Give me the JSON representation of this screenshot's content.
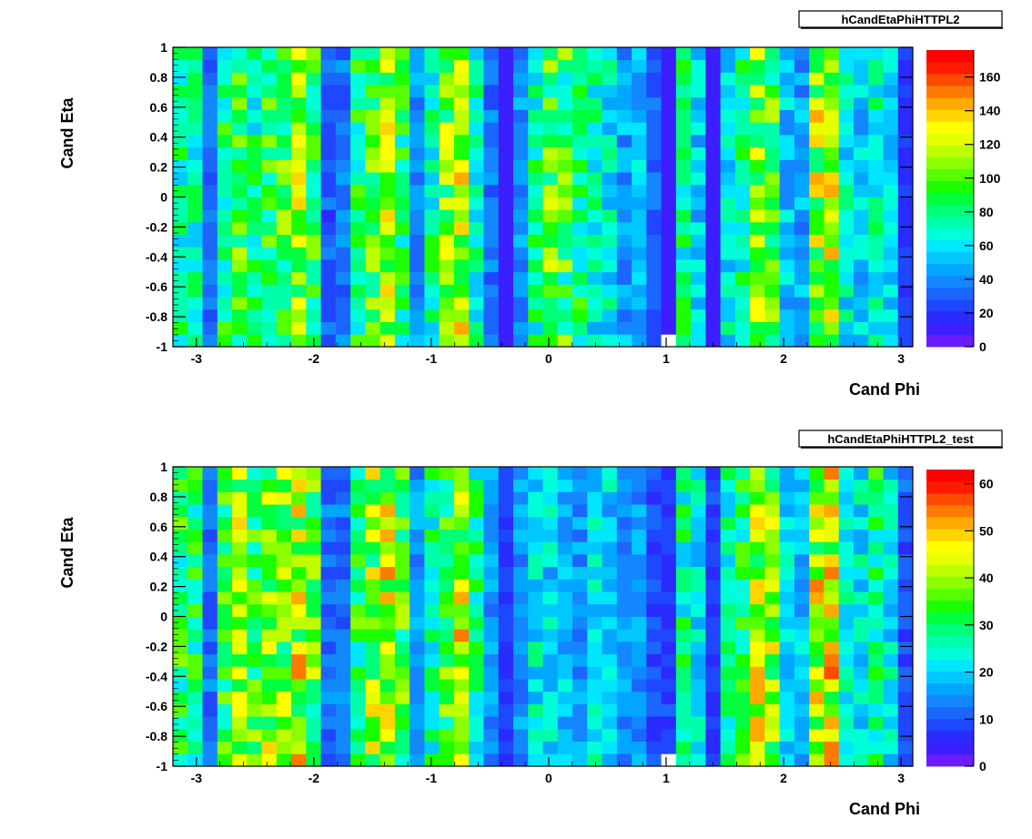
{
  "chart_data": [
    {
      "type": "heatmap",
      "title": "hCandEtaPhiHTTPL2",
      "xlabel": "Cand Phi",
      "ylabel": "Cand Eta",
      "xlim": [
        -3.2,
        3.1
      ],
      "ylim": [
        -1,
        1
      ],
      "x_ticks": [
        -3,
        -2,
        -1,
        0,
        1,
        2,
        3
      ],
      "y_ticks": [
        -1,
        -0.8,
        -0.6,
        -0.4,
        -0.2,
        0,
        0.2,
        0.4,
        0.6,
        0.8,
        1
      ],
      "x_bins": 50,
      "y_bins": 24,
      "zlim": [
        0,
        176
      ],
      "z_ticks": [
        0,
        20,
        40,
        60,
        80,
        100,
        120,
        140,
        160
      ],
      "column_profile": [
        75,
        70,
        30,
        80,
        90,
        75,
        90,
        95,
        110,
        90,
        30,
        35,
        80,
        95,
        110,
        80,
        40,
        75,
        105,
        115,
        70,
        35,
        10,
        40,
        75,
        95,
        90,
        80,
        70,
        65,
        45,
        50,
        30,
        10,
        75,
        55,
        10,
        60,
        75,
        105,
        90,
        50,
        45,
        110,
        120,
        65,
        55,
        70,
        55,
        20
      ],
      "grid": false,
      "legend_position": "right"
    },
    {
      "type": "heatmap",
      "title": "hCandEtaPhiHTTPL2_test",
      "xlabel": "Cand Phi",
      "ylabel": "Cand Eta",
      "xlim": [
        -3.2,
        3.1
      ],
      "ylim": [
        -1,
        1
      ],
      "x_ticks": [
        -3,
        -2,
        -1,
        0,
        1,
        2,
        3
      ],
      "y_ticks": [
        -1,
        -0.8,
        -0.6,
        -0.4,
        -0.2,
        0,
        0.2,
        0.4,
        0.6,
        0.8,
        1
      ],
      "x_bins": 50,
      "y_bins": 24,
      "zlim": [
        0,
        63
      ],
      "z_ticks": [
        0,
        10,
        20,
        30,
        40,
        50,
        60
      ],
      "column_profile": [
        30,
        28,
        12,
        32,
        40,
        33,
        38,
        38,
        42,
        35,
        12,
        12,
        30,
        38,
        42,
        32,
        15,
        27,
        35,
        42,
        28,
        15,
        8,
        15,
        22,
        20,
        18,
        15,
        22,
        20,
        15,
        16,
        10,
        8,
        28,
        22,
        8,
        25,
        30,
        40,
        38,
        20,
        18,
        42,
        45,
        25,
        22,
        28,
        22,
        10
      ],
      "grid": false,
      "legend_position": "right"
    }
  ]
}
